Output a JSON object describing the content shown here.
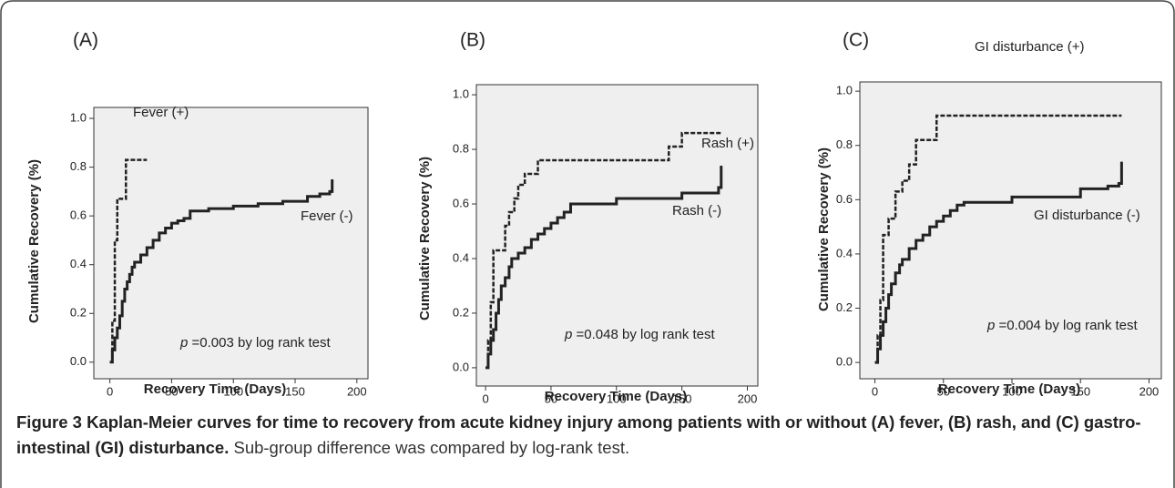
{
  "chart_data": [
    {
      "type": "step",
      "panel_label": "(A)",
      "x_label": "Recovery Time  (Days)",
      "y_label": "Cumulative Recovery (%)",
      "annotation_var": "p",
      "annotation": " =0.003 by log rank test",
      "xlim": [
        -13,
        209
      ],
      "ylim": [
        -0.068,
        1.045
      ],
      "xticks": [
        0,
        50,
        100,
        150,
        200
      ],
      "yticks": [
        {
          "value": 0,
          "label": "0.0"
        },
        0.2,
        0.4,
        0.6,
        0.8,
        {
          "value": 1,
          "label": "1.0"
        }
      ],
      "series": [
        {
          "name": "Fever (+)",
          "color": "#222",
          "line_style": "dashed",
          "x": [
            0,
            2,
            4,
            6,
            13,
            30
          ],
          "values": [
            0,
            0.17,
            0.5,
            0.67,
            0.83,
            0.83
          ]
        },
        {
          "name": "Fever (-)",
          "color": "#222",
          "line_style": "solid",
          "x": [
            0,
            2,
            4,
            6,
            8,
            10,
            12,
            14,
            16,
            18,
            20,
            25,
            30,
            35,
            40,
            45,
            50,
            55,
            60,
            65,
            80,
            100,
            120,
            140,
            160,
            170,
            178,
            180
          ],
          "values": [
            0,
            0.05,
            0.1,
            0.14,
            0.19,
            0.25,
            0.3,
            0.33,
            0.36,
            0.39,
            0.41,
            0.44,
            0.47,
            0.5,
            0.53,
            0.55,
            0.57,
            0.58,
            0.59,
            0.62,
            0.63,
            0.64,
            0.65,
            0.66,
            0.68,
            0.69,
            0.7,
            0.75
          ]
        }
      ]
    },
    {
      "type": "step",
      "panel_label": "(B)",
      "x_label": "Recovery Time  (Days)",
      "y_label": "Cumulative Recovery (%)",
      "annotation_var": "p",
      "annotation": " =0.048 by log rank test",
      "xlim": [
        -7,
        208
      ],
      "ylim": [
        -0.067,
        1.037
      ],
      "xticks": [
        0,
        50,
        100,
        150,
        200
      ],
      "yticks": [
        {
          "value": 0,
          "label": "0.0"
        },
        0.2,
        0.4,
        0.6,
        0.8,
        {
          "value": 1,
          "label": "1.0"
        }
      ],
      "series": [
        {
          "name": "Rash (+)",
          "color": "#222",
          "line_style": "dashed",
          "x": [
            0,
            2,
            4,
            6,
            10,
            15,
            18,
            22,
            25,
            30,
            40,
            140,
            150,
            180
          ],
          "values": [
            0,
            0.1,
            0.24,
            0.43,
            0.43,
            0.52,
            0.57,
            0.62,
            0.67,
            0.71,
            0.76,
            0.81,
            0.86,
            0.86
          ]
        },
        {
          "name": "Rash (-)",
          "color": "#222",
          "line_style": "solid",
          "x": [
            0,
            2,
            4,
            6,
            8,
            10,
            12,
            15,
            18,
            20,
            25,
            30,
            35,
            40,
            45,
            50,
            55,
            60,
            65,
            100,
            150,
            170,
            178,
            180
          ],
          "values": [
            0,
            0.05,
            0.1,
            0.14,
            0.2,
            0.25,
            0.3,
            0.33,
            0.37,
            0.4,
            0.42,
            0.44,
            0.47,
            0.49,
            0.51,
            0.53,
            0.55,
            0.57,
            0.6,
            0.62,
            0.64,
            0.64,
            0.66,
            0.74
          ]
        }
      ]
    },
    {
      "type": "step",
      "panel_label": "(C)",
      "x_label": "Recovery Time  (Days)",
      "y_label": "Cumulative Recovery (%)",
      "annotation_var": "p",
      "annotation": " =0.004 by log rank test",
      "xlim": [
        -11,
        209
      ],
      "ylim": [
        -0.06,
        1.034
      ],
      "xticks": [
        0,
        50,
        100,
        150,
        200
      ],
      "yticks": [
        {
          "value": 0,
          "label": "0.0"
        },
        0.2,
        0.4,
        0.6,
        0.8,
        {
          "value": 1,
          "label": "1.0"
        }
      ],
      "series": [
        {
          "name": "GI disturbance (+)",
          "color": "#222",
          "line_style": "dashed",
          "x": [
            0,
            2,
            4,
            6,
            8,
            10,
            15,
            20,
            25,
            30,
            45,
            180
          ],
          "values": [
            0,
            0.1,
            0.23,
            0.47,
            0.47,
            0.53,
            0.63,
            0.67,
            0.73,
            0.82,
            0.91,
            0.91
          ]
        },
        {
          "name": "GI disturbance (-)",
          "color": "#222",
          "line_style": "solid",
          "x": [
            0,
            2,
            4,
            6,
            8,
            10,
            12,
            15,
            18,
            20,
            25,
            30,
            35,
            40,
            45,
            50,
            55,
            60,
            65,
            100,
            150,
            170,
            178,
            180
          ],
          "values": [
            0,
            0.05,
            0.1,
            0.15,
            0.2,
            0.25,
            0.29,
            0.33,
            0.36,
            0.38,
            0.42,
            0.45,
            0.47,
            0.5,
            0.52,
            0.54,
            0.56,
            0.58,
            0.59,
            0.61,
            0.64,
            0.65,
            0.66,
            0.74
          ]
        }
      ]
    }
  ],
  "caption": {
    "bold": "Figure 3 Kaplan-Meier curves for time to recovery from acute kidney injury among patients with or without (A) fever, (B) rash, and (C) gastro-intestinal (GI) disturbance.",
    "text": " Sub-group difference was compared by log-rank test."
  }
}
